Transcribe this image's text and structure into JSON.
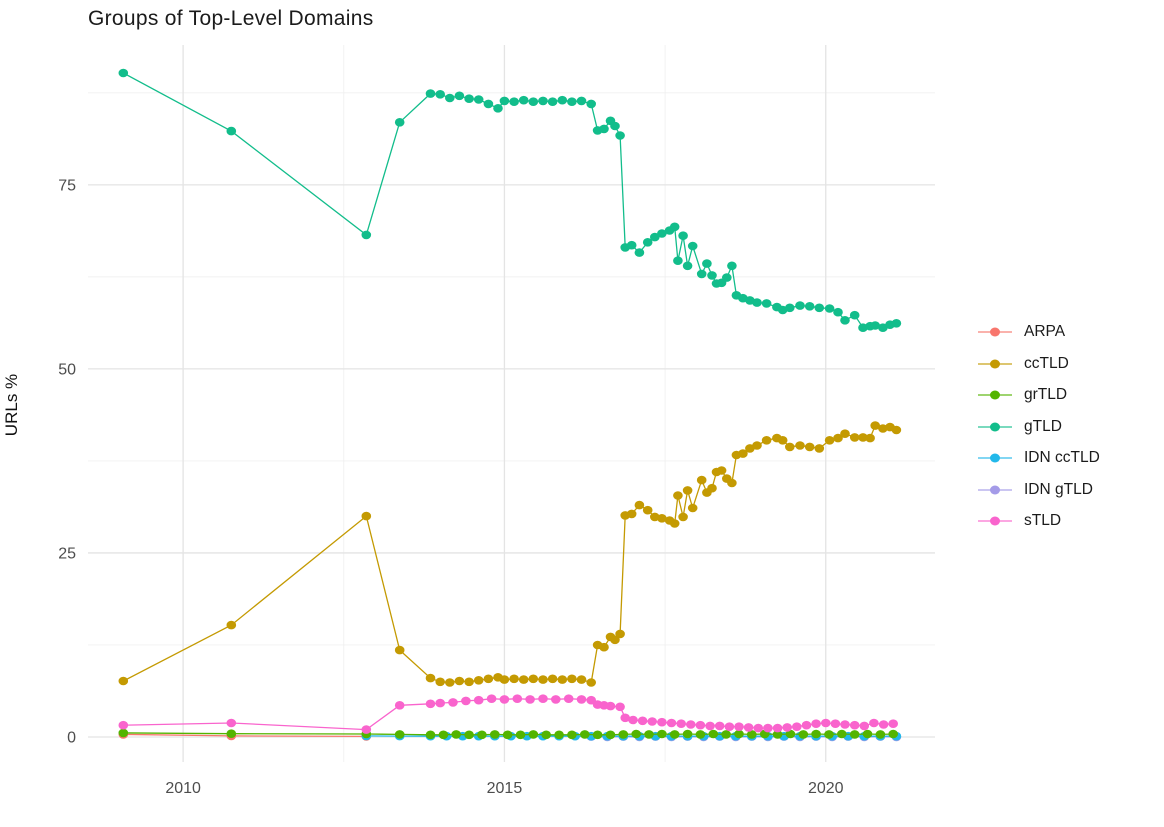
{
  "title": "Groups of Top-Level Domains",
  "chart_data": {
    "type": "line",
    "title": "Groups of Top-Level Domains",
    "xlabel": "",
    "ylabel": "URLs %",
    "x_ticks": [
      2010,
      2015,
      2020
    ],
    "x_minor_ticks": [
      2012.5,
      2017.5
    ],
    "y_ticks": [
      0,
      25,
      50,
      75
    ],
    "y_minor_ticks": [
      12.5,
      37.5,
      62.5,
      87.5
    ],
    "xlim": [
      2008.52,
      2021.7
    ],
    "ylim": [
      -3.4,
      94.0
    ],
    "grid": true,
    "legend_position": "right",
    "marker_radius": 4.3,
    "grid_major_color": "#e4e4e4",
    "grid_minor_color": "#f0f0f0",
    "tick_label_color": "#4d4d4d",
    "draw_order": [
      "ARPA",
      "IDN gTLD",
      "IDN ccTLD",
      "grTLD",
      "ccTLD",
      "gTLD",
      "sTLD"
    ],
    "series": [
      {
        "name": "ARPA",
        "color": "#F8766D",
        "points": [
          [
            2009.07,
            0.35
          ],
          [
            2010.75,
            0.15
          ],
          [
            2012.85,
            0.08
          ]
        ]
      },
      {
        "name": "ccTLD",
        "color": "#C49A02",
        "points": [
          [
            2009.07,
            7.6
          ],
          [
            2010.75,
            15.2
          ],
          [
            2012.85,
            30.0
          ],
          [
            2013.37,
            11.8
          ],
          [
            2013.85,
            8.0
          ],
          [
            2014.0,
            7.5
          ],
          [
            2014.15,
            7.4
          ],
          [
            2014.3,
            7.6
          ],
          [
            2014.45,
            7.5
          ],
          [
            2014.6,
            7.7
          ],
          [
            2014.75,
            7.9
          ],
          [
            2014.9,
            8.1
          ],
          [
            2015.0,
            7.8
          ],
          [
            2015.15,
            7.9
          ],
          [
            2015.3,
            7.8
          ],
          [
            2015.45,
            7.9
          ],
          [
            2015.6,
            7.8
          ],
          [
            2015.75,
            7.9
          ],
          [
            2015.9,
            7.8
          ],
          [
            2016.05,
            7.9
          ],
          [
            2016.2,
            7.8
          ],
          [
            2016.35,
            7.4
          ],
          [
            2016.45,
            12.5
          ],
          [
            2016.55,
            12.2
          ],
          [
            2016.65,
            13.6
          ],
          [
            2016.72,
            13.2
          ],
          [
            2016.8,
            14.0
          ],
          [
            2016.88,
            30.1
          ],
          [
            2016.98,
            30.3
          ],
          [
            2017.1,
            31.5
          ],
          [
            2017.23,
            30.8
          ],
          [
            2017.34,
            29.9
          ],
          [
            2017.45,
            29.7
          ],
          [
            2017.57,
            29.4
          ],
          [
            2017.65,
            29.0
          ],
          [
            2017.7,
            32.8
          ],
          [
            2017.78,
            29.9
          ],
          [
            2017.85,
            33.5
          ],
          [
            2017.93,
            31.1
          ],
          [
            2018.07,
            34.9
          ],
          [
            2018.15,
            33.2
          ],
          [
            2018.23,
            33.8
          ],
          [
            2018.3,
            36.0
          ],
          [
            2018.38,
            36.2
          ],
          [
            2018.46,
            35.1
          ],
          [
            2018.54,
            34.5
          ],
          [
            2018.61,
            38.3
          ],
          [
            2018.71,
            38.5
          ],
          [
            2018.82,
            39.2
          ],
          [
            2018.93,
            39.6
          ],
          [
            2019.08,
            40.3
          ],
          [
            2019.24,
            40.6
          ],
          [
            2019.33,
            40.3
          ],
          [
            2019.44,
            39.4
          ],
          [
            2019.6,
            39.6
          ],
          [
            2019.75,
            39.4
          ],
          [
            2019.9,
            39.2
          ],
          [
            2020.06,
            40.3
          ],
          [
            2020.19,
            40.6
          ],
          [
            2020.3,
            41.2
          ],
          [
            2020.45,
            40.7
          ],
          [
            2020.58,
            40.7
          ],
          [
            2020.69,
            40.6
          ],
          [
            2020.77,
            42.3
          ],
          [
            2020.89,
            41.9
          ],
          [
            2021.0,
            42.1
          ],
          [
            2021.1,
            41.7
          ]
        ]
      },
      {
        "name": "grTLD",
        "color": "#53B400",
        "points": [
          [
            2009.07,
            0.55
          ],
          [
            2010.75,
            0.45
          ],
          [
            2012.85,
            0.4
          ],
          [
            2013.37,
            0.35
          ],
          [
            2013.85,
            0.3
          ],
          [
            2014.05,
            0.3
          ],
          [
            2014.25,
            0.35
          ],
          [
            2014.45,
            0.3
          ],
          [
            2014.65,
            0.3
          ],
          [
            2014.85,
            0.35
          ],
          [
            2015.05,
            0.3
          ],
          [
            2015.25,
            0.3
          ],
          [
            2015.45,
            0.35
          ],
          [
            2015.65,
            0.3
          ],
          [
            2015.85,
            0.3
          ],
          [
            2016.05,
            0.3
          ],
          [
            2016.25,
            0.35
          ],
          [
            2016.45,
            0.3
          ],
          [
            2016.65,
            0.3
          ],
          [
            2016.85,
            0.35
          ],
          [
            2017.05,
            0.4
          ],
          [
            2017.25,
            0.35
          ],
          [
            2017.45,
            0.4
          ],
          [
            2017.65,
            0.35
          ],
          [
            2017.85,
            0.4
          ],
          [
            2018.05,
            0.35
          ],
          [
            2018.25,
            0.4
          ],
          [
            2018.45,
            0.35
          ],
          [
            2018.65,
            0.4
          ],
          [
            2018.85,
            0.35
          ],
          [
            2019.05,
            0.4
          ],
          [
            2019.25,
            0.35
          ],
          [
            2019.45,
            0.4
          ],
          [
            2019.65,
            0.35
          ],
          [
            2019.85,
            0.4
          ],
          [
            2020.05,
            0.35
          ],
          [
            2020.25,
            0.4
          ],
          [
            2020.45,
            0.35
          ],
          [
            2020.65,
            0.4
          ],
          [
            2020.85,
            0.35
          ],
          [
            2021.05,
            0.4
          ]
        ]
      },
      {
        "name": "gTLD",
        "color": "#12BD8B",
        "points": [
          [
            2009.07,
            90.2
          ],
          [
            2010.75,
            82.3
          ],
          [
            2012.85,
            68.2
          ],
          [
            2013.37,
            83.5
          ],
          [
            2013.85,
            87.4
          ],
          [
            2014.0,
            87.3
          ],
          [
            2014.15,
            86.8
          ],
          [
            2014.3,
            87.1
          ],
          [
            2014.45,
            86.7
          ],
          [
            2014.6,
            86.6
          ],
          [
            2014.75,
            86.0
          ],
          [
            2014.9,
            85.4
          ],
          [
            2015.0,
            86.4
          ],
          [
            2015.15,
            86.3
          ],
          [
            2015.3,
            86.5
          ],
          [
            2015.45,
            86.3
          ],
          [
            2015.6,
            86.4
          ],
          [
            2015.75,
            86.3
          ],
          [
            2015.9,
            86.5
          ],
          [
            2016.05,
            86.3
          ],
          [
            2016.2,
            86.4
          ],
          [
            2016.35,
            86.0
          ],
          [
            2016.45,
            82.4
          ],
          [
            2016.55,
            82.6
          ],
          [
            2016.65,
            83.7
          ],
          [
            2016.72,
            83.0
          ],
          [
            2016.8,
            81.7
          ],
          [
            2016.88,
            66.5
          ],
          [
            2016.98,
            66.8
          ],
          [
            2017.1,
            65.8
          ],
          [
            2017.23,
            67.2
          ],
          [
            2017.34,
            67.9
          ],
          [
            2017.45,
            68.4
          ],
          [
            2017.57,
            68.8
          ],
          [
            2017.65,
            69.3
          ],
          [
            2017.7,
            64.7
          ],
          [
            2017.78,
            68.1
          ],
          [
            2017.85,
            64.0
          ],
          [
            2017.93,
            66.7
          ],
          [
            2018.07,
            62.9
          ],
          [
            2018.15,
            64.3
          ],
          [
            2018.23,
            62.7
          ],
          [
            2018.3,
            61.6
          ],
          [
            2018.38,
            61.7
          ],
          [
            2018.46,
            62.4
          ],
          [
            2018.54,
            64.0
          ],
          [
            2018.61,
            60.0
          ],
          [
            2018.71,
            59.6
          ],
          [
            2018.82,
            59.3
          ],
          [
            2018.93,
            59.0
          ],
          [
            2019.08,
            58.9
          ],
          [
            2019.24,
            58.4
          ],
          [
            2019.33,
            58.0
          ],
          [
            2019.44,
            58.3
          ],
          [
            2019.6,
            58.6
          ],
          [
            2019.75,
            58.5
          ],
          [
            2019.9,
            58.3
          ],
          [
            2020.06,
            58.2
          ],
          [
            2020.19,
            57.7
          ],
          [
            2020.3,
            56.6
          ],
          [
            2020.45,
            57.3
          ],
          [
            2020.58,
            55.6
          ],
          [
            2020.69,
            55.8
          ],
          [
            2020.77,
            55.9
          ],
          [
            2020.89,
            55.6
          ],
          [
            2021.0,
            56.0
          ],
          [
            2021.1,
            56.2
          ]
        ]
      },
      {
        "name": "IDN ccTLD",
        "color": "#22B8EA",
        "points": [
          [
            2012.85,
            0.15
          ],
          [
            2013.37,
            0.12
          ],
          [
            2013.85,
            0.1
          ],
          [
            2014.1,
            0.1
          ],
          [
            2014.35,
            0.1
          ],
          [
            2014.6,
            0.1
          ],
          [
            2014.85,
            0.1
          ],
          [
            2015.1,
            0.1
          ],
          [
            2015.35,
            0.1
          ],
          [
            2015.6,
            0.1
          ],
          [
            2015.85,
            0.1
          ],
          [
            2016.1,
            0.1
          ],
          [
            2016.35,
            0.1
          ],
          [
            2016.6,
            0.1
          ],
          [
            2016.85,
            0.1
          ],
          [
            2017.1,
            0.1
          ],
          [
            2017.35,
            0.1
          ],
          [
            2017.6,
            0.1
          ],
          [
            2017.85,
            0.1
          ],
          [
            2018.1,
            0.1
          ],
          [
            2018.35,
            0.1
          ],
          [
            2018.6,
            0.1
          ],
          [
            2018.85,
            0.1
          ],
          [
            2019.1,
            0.1
          ],
          [
            2019.35,
            0.1
          ],
          [
            2019.6,
            0.1
          ],
          [
            2019.85,
            0.1
          ],
          [
            2020.1,
            0.1
          ],
          [
            2020.35,
            0.1
          ],
          [
            2020.6,
            0.1
          ],
          [
            2020.85,
            0.1
          ],
          [
            2021.1,
            0.1
          ]
        ]
      },
      {
        "name": "IDN gTLD",
        "color": "#A49BE8",
        "points": [
          [
            2016.35,
            0.05
          ],
          [
            2016.6,
            0.0
          ],
          [
            2016.85,
            0.05
          ],
          [
            2017.1,
            0.0
          ],
          [
            2017.35,
            0.05
          ],
          [
            2017.6,
            0.0
          ],
          [
            2017.85,
            0.05
          ],
          [
            2018.1,
            0.0
          ],
          [
            2018.35,
            0.05
          ],
          [
            2018.6,
            0.0
          ],
          [
            2018.85,
            0.05
          ],
          [
            2019.1,
            0.0
          ],
          [
            2019.35,
            0.05
          ],
          [
            2019.6,
            0.0
          ],
          [
            2019.85,
            0.05
          ],
          [
            2020.1,
            0.0
          ],
          [
            2020.35,
            0.05
          ],
          [
            2020.6,
            0.0
          ],
          [
            2020.85,
            0.05
          ],
          [
            2021.1,
            0.0
          ]
        ]
      },
      {
        "name": "sTLD",
        "color": "#F964CD",
        "points": [
          [
            2009.07,
            1.6
          ],
          [
            2010.75,
            1.9
          ],
          [
            2012.85,
            1.0
          ],
          [
            2013.37,
            4.3
          ],
          [
            2013.85,
            4.5
          ],
          [
            2014.0,
            4.6
          ],
          [
            2014.2,
            4.7
          ],
          [
            2014.4,
            4.9
          ],
          [
            2014.6,
            5.0
          ],
          [
            2014.8,
            5.2
          ],
          [
            2015.0,
            5.1
          ],
          [
            2015.2,
            5.2
          ],
          [
            2015.4,
            5.1
          ],
          [
            2015.6,
            5.2
          ],
          [
            2015.8,
            5.1
          ],
          [
            2016.0,
            5.2
          ],
          [
            2016.2,
            5.1
          ],
          [
            2016.35,
            5.0
          ],
          [
            2016.45,
            4.4
          ],
          [
            2016.55,
            4.3
          ],
          [
            2016.65,
            4.2
          ],
          [
            2016.8,
            4.1
          ],
          [
            2016.88,
            2.6
          ],
          [
            2017.0,
            2.3
          ],
          [
            2017.15,
            2.2
          ],
          [
            2017.3,
            2.1
          ],
          [
            2017.45,
            2.0
          ],
          [
            2017.6,
            1.9
          ],
          [
            2017.75,
            1.8
          ],
          [
            2017.9,
            1.7
          ],
          [
            2018.05,
            1.6
          ],
          [
            2018.2,
            1.5
          ],
          [
            2018.35,
            1.5
          ],
          [
            2018.5,
            1.4
          ],
          [
            2018.65,
            1.4
          ],
          [
            2018.8,
            1.3
          ],
          [
            2018.95,
            1.2
          ],
          [
            2019.1,
            1.2
          ],
          [
            2019.25,
            1.2
          ],
          [
            2019.4,
            1.3
          ],
          [
            2019.55,
            1.4
          ],
          [
            2019.7,
            1.6
          ],
          [
            2019.85,
            1.8
          ],
          [
            2020.0,
            1.9
          ],
          [
            2020.15,
            1.8
          ],
          [
            2020.3,
            1.7
          ],
          [
            2020.45,
            1.6
          ],
          [
            2020.6,
            1.5
          ],
          [
            2020.75,
            1.9
          ],
          [
            2020.9,
            1.7
          ],
          [
            2021.05,
            1.8
          ]
        ]
      }
    ]
  }
}
